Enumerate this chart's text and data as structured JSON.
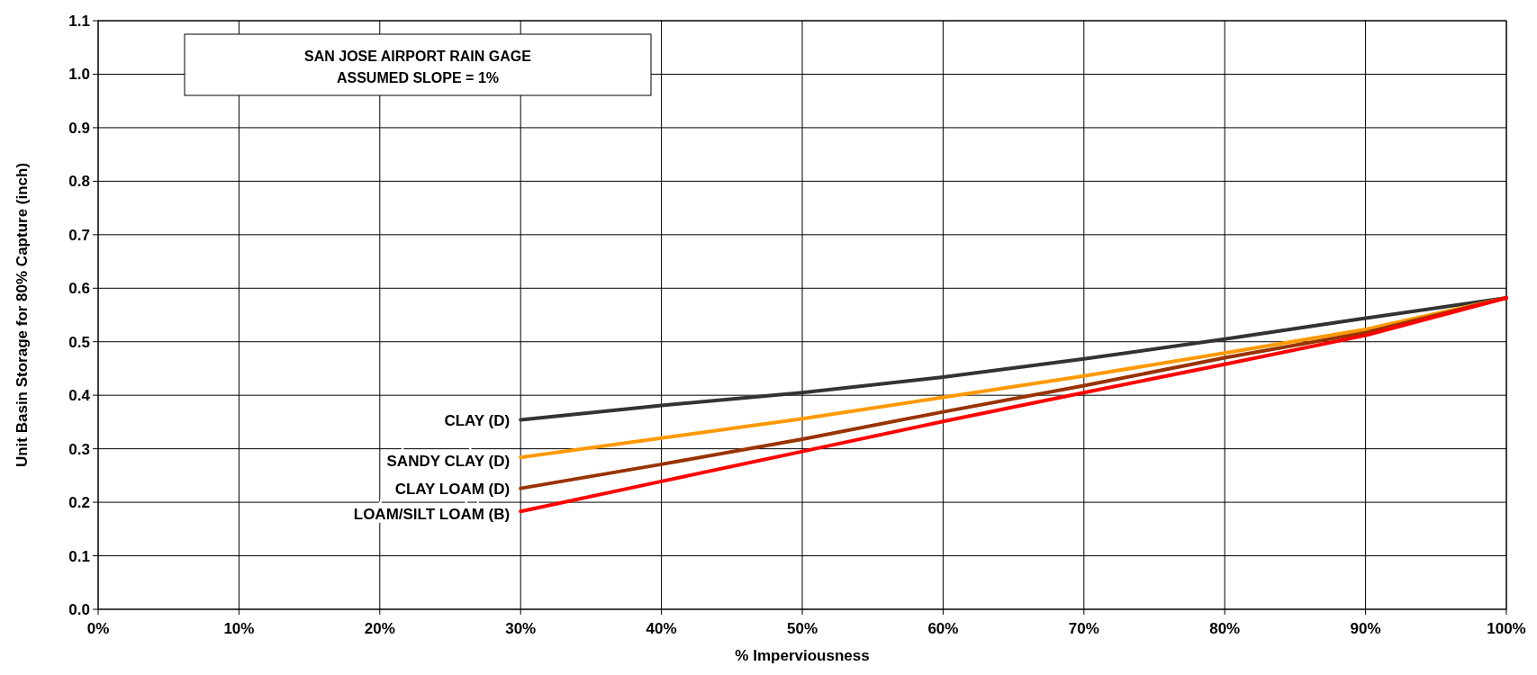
{
  "chart_data": {
    "type": "line",
    "xlabel": "% Imperviousness",
    "ylabel": "Unit Basin Storage for 80% Capture (inch)",
    "annotations": [
      "SAN JOSE AIRPORT RAIN GAGE",
      "ASSUMED SLOPE = 1%"
    ],
    "x": [
      30,
      40,
      50,
      60,
      70,
      80,
      90,
      100
    ],
    "series": [
      {
        "name": "CLAY (D)",
        "color": "#333333",
        "values": [
          0.354,
          0.381,
          0.405,
          0.434,
          0.468,
          0.505,
          0.544,
          0.582
        ]
      },
      {
        "name": "SANDY CLAY (D)",
        "color": "#ff9900",
        "values": [
          0.284,
          0.32,
          0.356,
          0.396,
          0.436,
          0.479,
          0.523,
          0.582
        ]
      },
      {
        "name": "CLAY LOAM (D)",
        "color": "#993300",
        "values": [
          0.226,
          0.271,
          0.318,
          0.369,
          0.418,
          0.47,
          0.517,
          0.582
        ]
      },
      {
        "name": "LOAM/SILT LOAM (B)",
        "color": "#ff0000",
        "values": [
          0.183,
          0.239,
          0.295,
          0.351,
          0.405,
          0.458,
          0.512,
          0.582
        ]
      }
    ],
    "xlim": [
      0,
      100
    ],
    "xticks": [
      {
        "value": 0,
        "label": "0%"
      },
      {
        "value": 10,
        "label": "10%"
      },
      {
        "value": 20,
        "label": "20%"
      },
      {
        "value": 30,
        "label": "30%"
      },
      {
        "value": 40,
        "label": "40%"
      },
      {
        "value": 50,
        "label": "50%"
      },
      {
        "value": 60,
        "label": "60%"
      },
      {
        "value": 70,
        "label": "70%"
      },
      {
        "value": 80,
        "label": "80%"
      },
      {
        "value": 90,
        "label": "90%"
      },
      {
        "value": 100,
        "label": "100%"
      }
    ],
    "ylim": [
      0,
      1.1
    ],
    "yticks": [
      {
        "value": 0,
        "label": "0.0"
      },
      {
        "value": 0.1,
        "label": "0.1"
      },
      {
        "value": 0.2,
        "label": "0.2"
      },
      {
        "value": 0.3,
        "label": "0.3"
      },
      {
        "value": 0.4,
        "label": "0.4"
      },
      {
        "value": 0.5,
        "label": "0.5"
      },
      {
        "value": 0.6,
        "label": "0.6"
      },
      {
        "value": 0.7,
        "label": "0.7"
      },
      {
        "value": 0.8,
        "label": "0.8"
      },
      {
        "value": 0.9,
        "label": "0.9"
      },
      {
        "value": 1.0,
        "label": "1.0"
      },
      {
        "value": 1.1,
        "label": "1.1"
      }
    ],
    "grid": true,
    "marker": "none",
    "line_style": "solid"
  }
}
